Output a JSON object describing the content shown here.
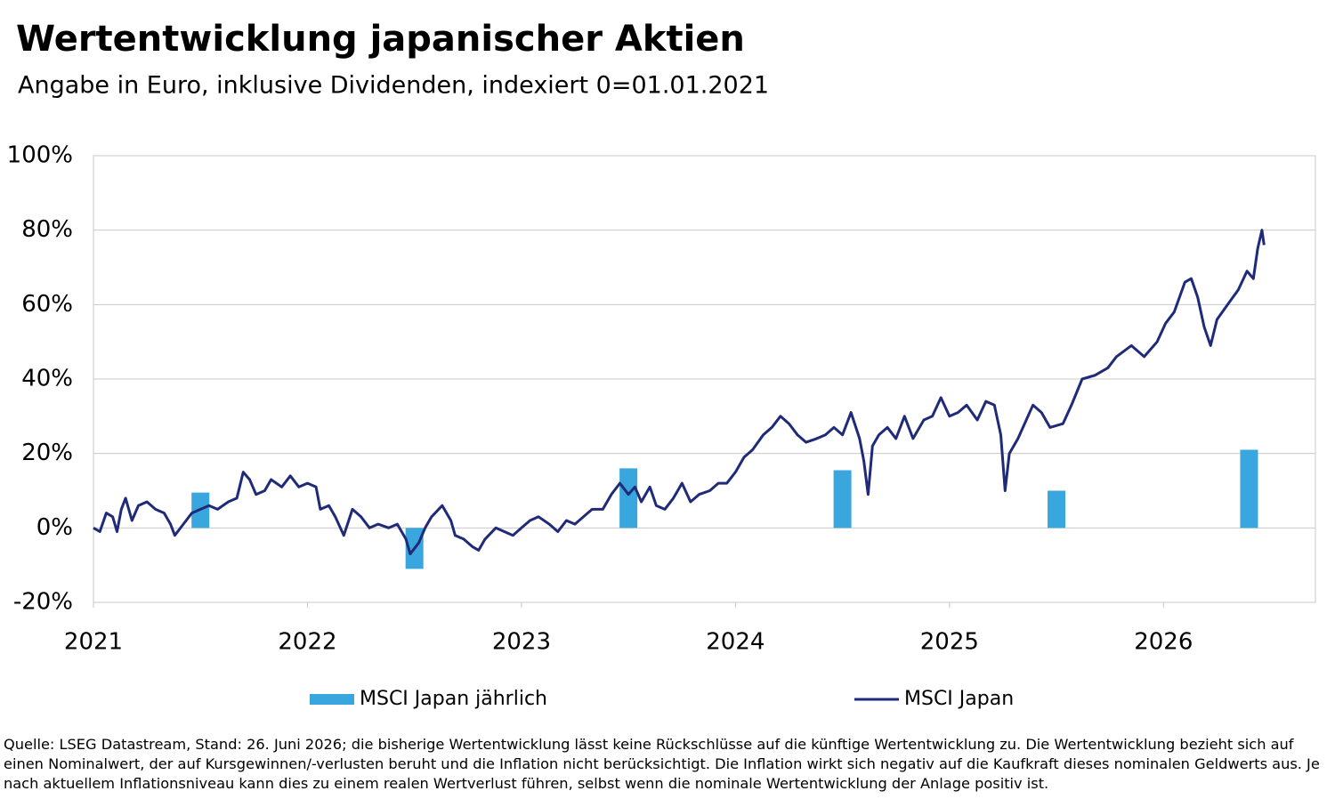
{
  "chart_data": {
    "type": "line",
    "title": "Wertentwicklung japanischer Aktien",
    "subtitle": "Angabe in Euro, inklusive Dividenden, indexiert 0=01.01.2021",
    "xlim": [
      2021,
      2026.71
    ],
    "xticks": [
      2021,
      2022,
      2023,
      2024,
      2025,
      2026
    ],
    "ylim": [
      -20,
      100
    ],
    "yticks": [
      {
        "value": -20,
        "label": "-20%"
      },
      {
        "value": 0,
        "label": "0%"
      },
      {
        "value": 20,
        "label": "20%"
      },
      {
        "value": 40,
        "label": "40%"
      },
      {
        "value": 60,
        "label": "60%"
      },
      {
        "value": 80,
        "label": "80%"
      },
      {
        "value": 100,
        "label": "100%"
      }
    ],
    "grid": true,
    "legend": "bottom",
    "series": [
      {
        "name": "MSCI Japan jährlich",
        "type": "bar",
        "color": "#39a6de",
        "x": [
          2021.5,
          2022.5,
          2023.5,
          2024.5,
          2025.5,
          2026.4
        ],
        "values": [
          9.5,
          -11,
          16,
          15.5,
          10,
          21
        ]
      },
      {
        "name": "MSCI Japan",
        "type": "line",
        "color": "#1f2a78",
        "x": [
          2021.0,
          2021.03,
          2021.06,
          2021.09,
          2021.11,
          2021.13,
          2021.15,
          2021.18,
          2021.21,
          2021.25,
          2021.29,
          2021.33,
          2021.36,
          2021.38,
          2021.42,
          2021.46,
          2021.5,
          2021.54,
          2021.58,
          2021.63,
          2021.67,
          2021.7,
          2021.73,
          2021.76,
          2021.8,
          2021.83,
          2021.88,
          2021.92,
          2021.96,
          2022.0,
          2022.04,
          2022.06,
          2022.1,
          2022.13,
          2022.17,
          2022.21,
          2022.25,
          2022.29,
          2022.33,
          2022.38,
          2022.42,
          2022.46,
          2022.48,
          2022.52,
          2022.55,
          2022.58,
          2022.63,
          2022.67,
          2022.69,
          2022.73,
          2022.77,
          2022.8,
          2022.83,
          2022.88,
          2022.92,
          2022.96,
          2023.0,
          2023.04,
          2023.08,
          2023.13,
          2023.17,
          2023.21,
          2023.25,
          2023.29,
          2023.33,
          2023.38,
          2023.42,
          2023.46,
          2023.5,
          2023.53,
          2023.56,
          2023.6,
          2023.63,
          2023.67,
          2023.71,
          2023.75,
          2023.79,
          2023.83,
          2023.88,
          2023.92,
          2023.96,
          2024.0,
          2024.04,
          2024.08,
          2024.13,
          2024.17,
          2024.21,
          2024.25,
          2024.29,
          2024.33,
          2024.38,
          2024.42,
          2024.46,
          2024.5,
          2024.54,
          2024.58,
          2024.6,
          2024.62,
          2024.64,
          2024.67,
          2024.71,
          2024.75,
          2024.79,
          2024.83,
          2024.88,
          2024.92,
          2024.96,
          2025.0,
          2025.04,
          2025.08,
          2025.13,
          2025.17,
          2025.21,
          2025.24,
          2025.26,
          2025.28,
          2025.32,
          2025.39,
          2025.43,
          2025.47,
          2025.53,
          2025.57,
          2025.62,
          2025.68,
          2025.74,
          2025.78,
          2025.85,
          2025.91,
          2025.97,
          2026.01,
          2026.05,
          2026.1,
          2026.13,
          2026.16,
          2026.19,
          2026.22,
          2026.25,
          2026.3,
          2026.35,
          2026.39,
          2026.42,
          2026.44,
          2026.46,
          2026.47
        ],
        "values": [
          0,
          -1,
          4,
          3,
          -1,
          5,
          8,
          2,
          6,
          7,
          5,
          4,
          1,
          -2,
          1,
          4,
          5,
          6,
          5,
          7,
          8,
          15,
          13,
          9,
          10,
          13,
          11,
          14,
          11,
          12,
          11,
          5,
          6,
          3,
          -2,
          5,
          3,
          0,
          1,
          0,
          1,
          -3,
          -7,
          -4,
          0,
          3,
          6,
          2,
          -2,
          -3,
          -5,
          -6,
          -3,
          0,
          -1,
          -2,
          0,
          2,
          3,
          1,
          -1,
          2,
          1,
          3,
          5,
          5,
          9,
          12,
          9,
          11,
          7,
          11,
          6,
          5,
          8,
          12,
          7,
          9,
          10,
          12,
          12,
          15,
          19,
          21,
          25,
          27,
          30,
          28,
          25,
          23,
          24,
          25,
          27,
          25,
          31,
          24,
          18,
          9,
          22,
          25,
          27,
          24,
          30,
          24,
          29,
          30,
          35,
          30,
          31,
          33,
          29,
          34,
          33,
          25,
          10,
          20,
          24,
          33,
          31,
          27,
          28,
          33,
          40,
          41,
          43,
          46,
          49,
          46,
          50,
          55,
          58,
          66,
          67,
          62,
          54,
          49,
          56,
          60,
          64,
          69,
          67,
          75,
          80,
          76
        ]
      }
    ],
    "footnote": "Quelle: LSEG Datastream, Stand: 26. Juni 2026; die bisherige Wertentwicklung lässt keine Rückschlüsse auf die künftige Wertentwicklung zu. Die Wertentwicklung bezieht sich auf einen Nominalwert, der auf Kursgewinnen/-verlusten beruht und die Inflation nicht berücksichtigt. Die Inflation wirkt sich negativ auf die Kaufkraft dieses nominalen Geldwerts aus. Je nach aktuellem Inflationsniveau kann dies zu einem realen Wertverlust führen, selbst wenn die nominale Wertentwicklung der Anlage positiv ist."
  }
}
